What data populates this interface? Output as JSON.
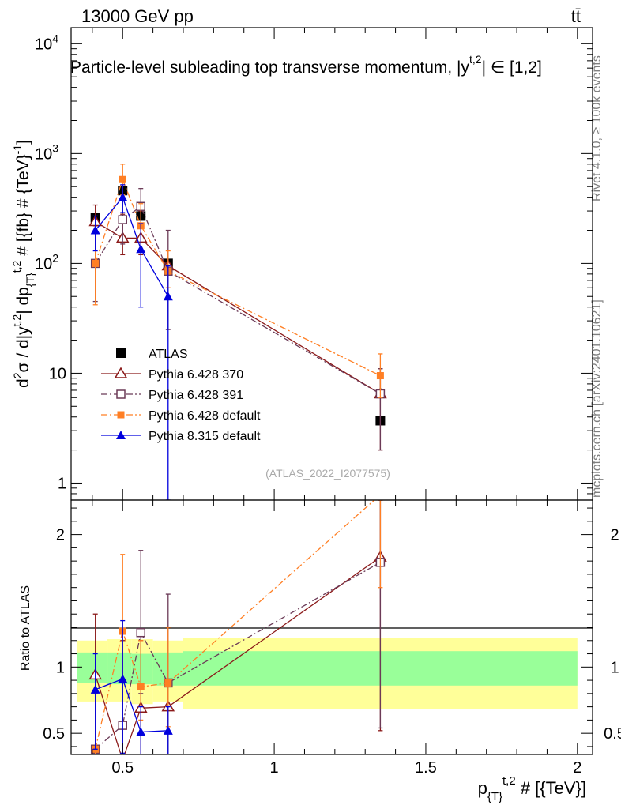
{
  "header": {
    "left": "13000 GeV pp",
    "right": "tt̄"
  },
  "side_text": {
    "rivet": "Rivet 4.1.0, ≥ 100k events",
    "mcplots": "mcplots.cern.ch [arXiv:2401.10621]"
  },
  "chart_data": [
    {
      "type": "scatter",
      "panel": "main",
      "title": "Particle-level subleading top transverse momentum, |y^{t,2}| ∈ [1,2]",
      "title_text": "Particle-level subleading top transverse momentum, |y",
      "title_sup": "t,2",
      "title_tail": "| ∈ [1,2]",
      "ylabel": "d²σ / d|y^{t,2}| dp_{T}^{t,2} # [{fb} # {TeV}^-1]",
      "ylabel_parts": [
        "d",
        "2",
        "σ / d|y",
        "t,2",
        "| dp",
        "{T}",
        "t,2",
        " # [{fb} # {TeV}",
        "-1",
        "]"
      ],
      "yscale": "log",
      "ylim": [
        0.7,
        14000
      ],
      "xlim": [
        0.33,
        2.05
      ],
      "yticks": [
        {
          "v": 1,
          "label": "1"
        },
        {
          "v": 10,
          "label": "10"
        },
        {
          "v": 100,
          "label": "10",
          "sup": "2"
        },
        {
          "v": 1000,
          "label": "10",
          "sup": "3"
        },
        {
          "v": 10000,
          "label": "10",
          "sup": "4"
        }
      ],
      "watermark": "(ATLAS_2022_I2077575)",
      "legend_position": "lower-left",
      "series": [
        {
          "name": "ATLAS",
          "color": "#000000",
          "marker": "square-filled",
          "line": "none",
          "x": [
            0.41,
            0.5,
            0.56,
            0.65,
            1.35
          ],
          "y": [
            260,
            460,
            270,
            100,
            3.7
          ],
          "err_lo": [
            0,
            0,
            0,
            0,
            0
          ],
          "err_hi": [
            0,
            0,
            0,
            0,
            0
          ]
        },
        {
          "name": "Pythia 6.428 370",
          "color": "#8b1a1a",
          "marker": "triangle-open",
          "line": "solid",
          "x": [
            0.41,
            0.5,
            0.56,
            0.65,
            1.35
          ],
          "y": [
            240,
            170,
            170,
            95,
            6.5
          ],
          "err_lo": [
            220,
            120,
            120,
            0,
            2
          ],
          "err_hi": [
            340,
            280,
            300,
            0,
            11
          ]
        },
        {
          "name": "Pythia 6.428 391",
          "color": "#6b3a57",
          "marker": "square-open",
          "line": "dashdot",
          "x": [
            0.41,
            0.5,
            0.56,
            0.65,
            1.35
          ],
          "y": [
            100,
            250,
            330,
            85,
            6.5
          ],
          "err_lo": [
            45,
            150,
            230,
            25,
            2
          ],
          "err_hi": [
            200,
            400,
            480,
            200,
            11
          ]
        },
        {
          "name": "Pythia 6.428 default",
          "color": "#ff7f24",
          "marker": "square-filled-small",
          "line": "dashdot",
          "x": [
            0.41,
            0.5,
            0.56,
            0.65,
            1.35
          ],
          "y": [
            100,
            580,
            220,
            85,
            9.5
          ],
          "err_lo": [
            42,
            420,
            130,
            60,
            6
          ],
          "err_hi": [
            190,
            800,
            350,
            130,
            15
          ]
        },
        {
          "name": "Pythia 8.315 default",
          "color": "#0000dd",
          "marker": "triangle-filled",
          "line": "solid",
          "x": [
            0.41,
            0.5,
            0.56,
            0.65
          ],
          "y": [
            200,
            400,
            135,
            50
          ],
          "err_lo": [
            130,
            290,
            40,
            0.5
          ],
          "err_hi": [
            270,
            520,
            230,
            95
          ]
        }
      ]
    },
    {
      "type": "scatter",
      "panel": "ratio",
      "ylabel": "Ratio to ATLAS",
      "xlabel": "p_{T}^{t,2} # [{TeV}]",
      "xlabel_parts": [
        "p",
        "{T}",
        "t,2",
        " # [{TeV}]"
      ],
      "ylim": [
        0.34,
        2.26
      ],
      "xlim": [
        0.33,
        2.05
      ],
      "xticks": [
        {
          "v": 0.5,
          "label": "0.5"
        },
        {
          "v": 1,
          "label": "1"
        },
        {
          "v": 1.5,
          "label": "1.5"
        },
        {
          "v": 2,
          "label": "2"
        }
      ],
      "yticks": [
        {
          "v": 0.5,
          "label": "0.5"
        },
        {
          "v": 1,
          "label": "1"
        },
        {
          "v": 2,
          "label": "2"
        }
      ],
      "bands": {
        "yellow": [
          {
            "x0": 0.35,
            "x1": 0.45,
            "lo": 0.74,
            "hi": 1.2
          },
          {
            "x0": 0.45,
            "x1": 0.53,
            "lo": 0.74,
            "hi": 1.21
          },
          {
            "x0": 0.53,
            "x1": 0.6,
            "lo": 0.72,
            "hi": 1.21
          },
          {
            "x0": 0.6,
            "x1": 0.7,
            "lo": 0.74,
            "hi": 1.2
          },
          {
            "x0": 0.7,
            "x1": 2.0,
            "lo": 0.68,
            "hi": 1.22
          }
        ],
        "green": [
          {
            "x0": 0.35,
            "x1": 0.45,
            "lo": 0.88,
            "hi": 1.11
          },
          {
            "x0": 0.45,
            "x1": 0.53,
            "lo": 0.87,
            "hi": 1.11
          },
          {
            "x0": 0.53,
            "x1": 0.6,
            "lo": 0.87,
            "hi": 1.1
          },
          {
            "x0": 0.6,
            "x1": 0.7,
            "lo": 0.86,
            "hi": 1.11
          },
          {
            "x0": 0.7,
            "x1": 2.0,
            "lo": 0.86,
            "hi": 1.12
          }
        ]
      },
      "series": [
        {
          "name": "Pythia 6.428 370",
          "color": "#8b1a1a",
          "marker": "triangle-open",
          "line": "solid",
          "x": [
            0.41,
            0.5,
            0.56,
            0.65,
            1.35
          ],
          "y": [
            0.94,
            0.3,
            0.69,
            0.7,
            1.83
          ],
          "err_lo": [
            0.34,
            0.3,
            0.3,
            0.7,
            0.52
          ],
          "err_hi": [
            1.4,
            1.2,
            1.2,
            0.7,
            2.3
          ]
        },
        {
          "name": "Pythia 6.428 391",
          "color": "#6b3a57",
          "marker": "square-open",
          "line": "dashdot",
          "x": [
            0.41,
            0.5,
            0.56,
            0.65,
            1.35
          ],
          "y": [
            0.38,
            0.56,
            1.26,
            0.88,
            1.79
          ],
          "err_lo": [
            0.34,
            0.34,
            0.8,
            0.34,
            0.54
          ],
          "err_hi": [
            0.8,
            0.9,
            1.88,
            1.55,
            2.3
          ]
        },
        {
          "name": "Pythia 6.428 default",
          "color": "#ff7f24",
          "marker": "square-filled-small",
          "line": "dashdot",
          "x": [
            0.41,
            0.5,
            0.56,
            0.65,
            1.35
          ],
          "y": [
            0.38,
            1.27,
            0.85,
            0.88,
            2.3
          ],
          "err_lo": [
            0.34,
            0.9,
            0.6,
            0.55,
            1.6
          ],
          "err_hi": [
            0.8,
            1.85,
            1.2,
            1.3,
            2.3
          ]
        },
        {
          "name": "Pythia 8.315 default",
          "color": "#0000dd",
          "marker": "triangle-filled",
          "line": "solid",
          "x": [
            0.41,
            0.5,
            0.56,
            0.65
          ],
          "y": [
            0.83,
            0.91,
            0.51,
            0.52
          ],
          "err_lo": [
            0.38,
            0.35,
            0.34,
            0.34
          ],
          "err_hi": [
            1.1,
            1.35,
            0.7,
            0.7
          ]
        }
      ]
    }
  ]
}
